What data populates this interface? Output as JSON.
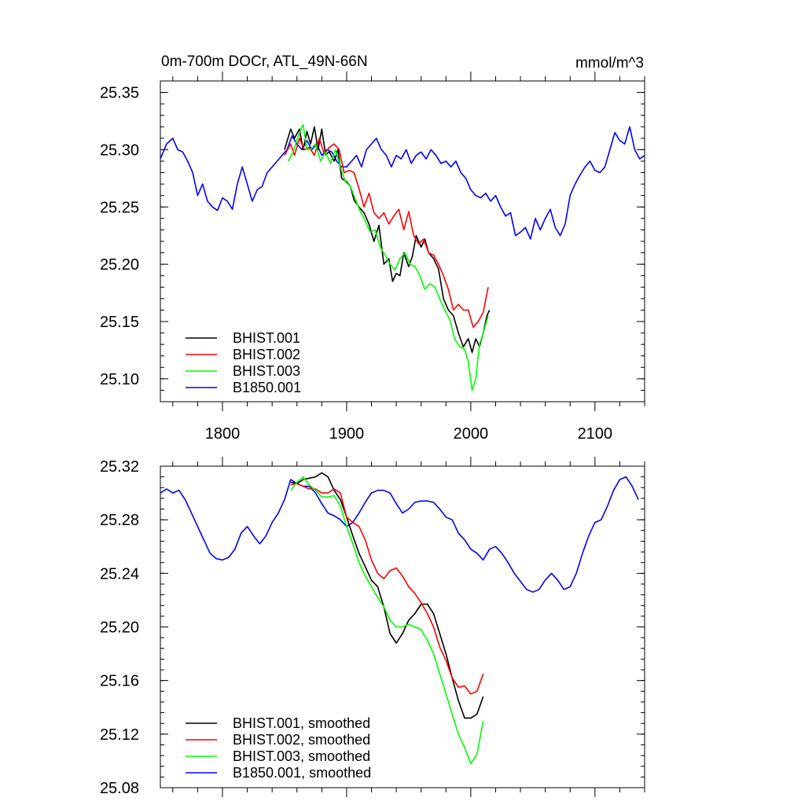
{
  "chart_data": [
    {
      "type": "line",
      "title": "0m-700m DOCr, ATL_49N-66N",
      "units": "mmol/m^3",
      "xlim": [
        1750,
        2140
      ],
      "ylim": [
        25.08,
        25.36
      ],
      "xticks": [
        1800,
        1900,
        2000,
        2100
      ],
      "xtick_labels": [
        "1800",
        "1900",
        "2000",
        "2100"
      ],
      "yticks": [
        25.1,
        25.15,
        25.2,
        25.25,
        25.3,
        25.35
      ],
      "ytick_labels": [
        "25.10",
        "25.15",
        "25.20",
        "25.25",
        "25.30",
        "25.35"
      ],
      "legend_position": "bottom-left",
      "series": [
        {
          "name": "BHIST.001",
          "color": "#000000",
          "x": [
            1850,
            1855,
            1858,
            1862,
            1865,
            1868,
            1871,
            1874,
            1877,
            1880,
            1883,
            1886,
            1890,
            1893,
            1896,
            1900,
            1903,
            1906,
            1910,
            1914,
            1918,
            1922,
            1926,
            1930,
            1934,
            1937,
            1940,
            1943,
            1946,
            1950,
            1953,
            1956,
            1960,
            1963,
            1966,
            1970,
            1974,
            1978,
            1982,
            1986,
            1990,
            1994,
            1998,
            2001,
            2004,
            2007,
            2010,
            2013,
            2015
          ],
          "y": [
            25.3,
            25.318,
            25.31,
            25.318,
            25.3,
            25.316,
            25.305,
            25.32,
            25.3,
            25.318,
            25.296,
            25.298,
            25.29,
            25.3,
            25.275,
            25.272,
            25.268,
            25.256,
            25.25,
            25.245,
            25.235,
            25.22,
            25.234,
            25.2,
            25.205,
            25.185,
            25.192,
            25.19,
            25.21,
            25.198,
            25.207,
            25.225,
            25.215,
            25.222,
            25.21,
            25.205,
            25.196,
            25.17,
            25.16,
            25.155,
            25.14,
            25.128,
            25.135,
            25.123,
            25.135,
            25.128,
            25.14,
            25.155,
            25.16
          ]
        },
        {
          "name": "BHIST.002",
          "color": "#ff0000",
          "x": [
            1850,
            1855,
            1858,
            1862,
            1866,
            1870,
            1874,
            1878,
            1882,
            1886,
            1890,
            1894,
            1898,
            1902,
            1906,
            1910,
            1914,
            1918,
            1922,
            1926,
            1930,
            1934,
            1938,
            1942,
            1946,
            1950,
            1954,
            1958,
            1962,
            1966,
            1970,
            1974,
            1978,
            1982,
            1986,
            1990,
            1994,
            1998,
            2002,
            2006,
            2010,
            2014
          ],
          "y": [
            25.295,
            25.305,
            25.295,
            25.31,
            25.3,
            25.302,
            25.295,
            25.31,
            25.296,
            25.302,
            25.305,
            25.3,
            25.28,
            25.282,
            25.28,
            25.266,
            25.25,
            25.262,
            25.245,
            25.24,
            25.245,
            25.235,
            25.242,
            25.248,
            25.23,
            25.246,
            25.225,
            25.218,
            25.222,
            25.21,
            25.208,
            25.2,
            25.19,
            25.178,
            25.16,
            25.165,
            25.16,
            25.16,
            25.145,
            25.15,
            25.158,
            25.18
          ]
        },
        {
          "name": "BHIST.003",
          "color": "#00ff00",
          "x": [
            1853,
            1857,
            1861,
            1865,
            1868,
            1871,
            1875,
            1879,
            1883,
            1887,
            1891,
            1895,
            1899,
            1903,
            1907,
            1911,
            1915,
            1919,
            1923,
            1927,
            1931,
            1935,
            1939,
            1943,
            1947,
            1951,
            1955,
            1959,
            1963,
            1967,
            1971,
            1975,
            1979,
            1983,
            1987,
            1991,
            1995,
            1998,
            2001,
            2004,
            2007,
            2010,
            2014
          ],
          "y": [
            25.29,
            25.298,
            25.312,
            25.322,
            25.3,
            25.3,
            25.305,
            25.29,
            25.298,
            25.288,
            25.3,
            25.285,
            25.272,
            25.268,
            25.257,
            25.246,
            25.238,
            25.228,
            25.23,
            25.215,
            25.208,
            25.2,
            25.195,
            25.205,
            25.21,
            25.2,
            25.198,
            25.19,
            25.178,
            25.183,
            25.18,
            25.17,
            25.16,
            25.152,
            25.135,
            25.128,
            25.126,
            25.115,
            25.09,
            25.1,
            25.13,
            25.14,
            25.155
          ]
        },
        {
          "name": "B1850.001",
          "color": "#0000ff",
          "x": [
            1750,
            1755,
            1760,
            1764,
            1768,
            1772,
            1776,
            1780,
            1784,
            1788,
            1792,
            1796,
            1800,
            1804,
            1808,
            1812,
            1816,
            1820,
            1824,
            1828,
            1832,
            1836,
            1840,
            1844,
            1848,
            1852,
            1856,
            1860,
            1864,
            1868,
            1872,
            1876,
            1880,
            1884,
            1888,
            1892,
            1896,
            1900,
            1904,
            1908,
            1912,
            1916,
            1920,
            1924,
            1928,
            1932,
            1936,
            1940,
            1944,
            1948,
            1952,
            1956,
            1960,
            1964,
            1968,
            1972,
            1976,
            1980,
            1984,
            1988,
            1992,
            1996,
            2000,
            2004,
            2008,
            2012,
            2016,
            2020,
            2024,
            2028,
            2032,
            2036,
            2040,
            2044,
            2048,
            2052,
            2056,
            2060,
            2064,
            2068,
            2072,
            2076,
            2080,
            2084,
            2088,
            2092,
            2096,
            2100,
            2104,
            2108,
            2112,
            2116,
            2120,
            2124,
            2128,
            2132,
            2136,
            2140
          ],
          "y": [
            25.292,
            25.305,
            25.31,
            25.3,
            25.298,
            25.29,
            25.28,
            25.26,
            25.27,
            25.255,
            25.25,
            25.247,
            25.258,
            25.255,
            25.248,
            25.27,
            25.285,
            25.27,
            25.255,
            25.265,
            25.268,
            25.28,
            25.285,
            25.29,
            25.295,
            25.3,
            25.312,
            25.305,
            25.3,
            25.308,
            25.3,
            25.305,
            25.295,
            25.3,
            25.298,
            25.29,
            25.285,
            25.285,
            25.29,
            25.295,
            25.285,
            25.3,
            25.305,
            25.31,
            25.3,
            25.295,
            25.285,
            25.295,
            25.292,
            25.3,
            25.288,
            25.295,
            25.298,
            25.292,
            25.3,
            25.295,
            25.288,
            25.29,
            25.285,
            25.29,
            25.28,
            25.275,
            25.265,
            25.26,
            25.258,
            25.262,
            25.255,
            25.26,
            25.25,
            25.242,
            25.245,
            25.225,
            25.228,
            25.232,
            25.222,
            25.24,
            25.23,
            25.24,
            25.248,
            25.232,
            25.225,
            25.235,
            25.26,
            25.27,
            25.278,
            25.285,
            25.29,
            25.282,
            25.28,
            25.285,
            25.3,
            25.315,
            25.308,
            25.305,
            25.32,
            25.3,
            25.292,
            25.295
          ]
        }
      ]
    },
    {
      "type": "line",
      "title": "",
      "xlim": [
        1750,
        2140
      ],
      "ylim": [
        25.08,
        25.32
      ],
      "xticks": [
        1800,
        1900,
        2000,
        2100
      ],
      "xtick_labels": [],
      "yticks": [
        25.08,
        25.12,
        25.16,
        25.2,
        25.24,
        25.28,
        25.32
      ],
      "ytick_labels": [
        "25.08",
        "25.12",
        "25.16",
        "25.20",
        "25.24",
        "25.28",
        "25.32"
      ],
      "legend_position": "bottom-left",
      "series": [
        {
          "name": "BHIST.001, smoothed",
          "color": "#000000",
          "x": [
            1855,
            1860,
            1865,
            1870,
            1875,
            1880,
            1885,
            1890,
            1895,
            1900,
            1905,
            1910,
            1915,
            1920,
            1925,
            1930,
            1935,
            1940,
            1945,
            1950,
            1955,
            1960,
            1965,
            1970,
            1975,
            1980,
            1985,
            1990,
            1995,
            2000,
            2005,
            2010
          ],
          "y": [
            25.308,
            25.307,
            25.31,
            25.311,
            25.312,
            25.315,
            25.312,
            25.302,
            25.295,
            25.282,
            25.268,
            25.255,
            25.245,
            25.235,
            25.23,
            25.215,
            25.195,
            25.188,
            25.195,
            25.205,
            25.21,
            25.217,
            25.217,
            25.21,
            25.195,
            25.18,
            25.162,
            25.145,
            25.132,
            25.132,
            25.135,
            25.148
          ]
        },
        {
          "name": "BHIST.002, smoothed",
          "color": "#ff0000",
          "x": [
            1855,
            1860,
            1865,
            1870,
            1875,
            1880,
            1885,
            1890,
            1895,
            1900,
            1905,
            1910,
            1915,
            1920,
            1925,
            1930,
            1935,
            1940,
            1945,
            1950,
            1955,
            1960,
            1965,
            1970,
            1975,
            1980,
            1985,
            1990,
            1995,
            2000,
            2005,
            2010
          ],
          "y": [
            25.306,
            25.307,
            25.305,
            25.303,
            25.303,
            25.3,
            25.3,
            25.303,
            25.3,
            25.282,
            25.278,
            25.275,
            25.265,
            25.25,
            25.24,
            25.236,
            25.242,
            25.244,
            25.238,
            25.23,
            25.225,
            25.218,
            25.21,
            25.2,
            25.185,
            25.175,
            25.162,
            25.155,
            25.156,
            25.15,
            25.152,
            25.165
          ]
        },
        {
          "name": "BHIST.003, smoothed",
          "color": "#00ff00",
          "x": [
            1855,
            1860,
            1865,
            1870,
            1875,
            1880,
            1885,
            1890,
            1895,
            1900,
            1905,
            1910,
            1915,
            1920,
            1925,
            1930,
            1935,
            1940,
            1945,
            1950,
            1955,
            1960,
            1965,
            1970,
            1975,
            1980,
            1985,
            1990,
            1995,
            2000,
            2005,
            2010
          ],
          "y": [
            25.302,
            25.308,
            25.312,
            25.306,
            25.302,
            25.297,
            25.297,
            25.298,
            25.29,
            25.275,
            25.262,
            25.248,
            25.238,
            25.23,
            25.222,
            25.215,
            25.205,
            25.2,
            25.2,
            25.202,
            25.2,
            25.198,
            25.19,
            25.18,
            25.165,
            25.15,
            25.135,
            25.12,
            25.11,
            25.098,
            25.105,
            25.13
          ]
        },
        {
          "name": "B1850.001, smoothed",
          "color": "#0000ff",
          "x": [
            1750,
            1755,
            1760,
            1765,
            1770,
            1775,
            1780,
            1785,
            1790,
            1795,
            1800,
            1805,
            1810,
            1815,
            1820,
            1825,
            1830,
            1835,
            1840,
            1845,
            1850,
            1855,
            1860,
            1865,
            1870,
            1875,
            1880,
            1885,
            1890,
            1895,
            1900,
            1905,
            1910,
            1915,
            1920,
            1925,
            1930,
            1935,
            1940,
            1945,
            1950,
            1955,
            1960,
            1965,
            1970,
            1975,
            1980,
            1985,
            1990,
            1995,
            2000,
            2005,
            2010,
            2015,
            2020,
            2025,
            2030,
            2035,
            2040,
            2045,
            2050,
            2055,
            2060,
            2065,
            2070,
            2075,
            2080,
            2085,
            2090,
            2095,
            2100,
            2105,
            2110,
            2115,
            2120,
            2125,
            2130,
            2135
          ],
          "y": [
            25.3,
            25.303,
            25.3,
            25.302,
            25.295,
            25.285,
            25.275,
            25.265,
            25.255,
            25.251,
            25.25,
            25.252,
            25.258,
            25.27,
            25.275,
            25.268,
            25.262,
            25.268,
            25.278,
            25.285,
            25.295,
            25.31,
            25.307,
            25.305,
            25.305,
            25.3,
            25.292,
            25.285,
            25.283,
            25.28,
            25.275,
            25.278,
            25.285,
            25.293,
            25.3,
            25.302,
            25.302,
            25.3,
            25.292,
            25.285,
            25.288,
            25.293,
            25.294,
            25.294,
            25.293,
            25.288,
            25.282,
            25.28,
            25.27,
            25.265,
            25.258,
            25.255,
            25.25,
            25.258,
            25.26,
            25.255,
            25.248,
            25.24,
            25.234,
            25.228,
            25.226,
            25.228,
            25.235,
            25.24,
            25.235,
            25.228,
            25.23,
            25.24,
            25.255,
            25.268,
            25.278,
            25.28,
            25.29,
            25.302,
            25.31,
            25.312,
            25.305,
            25.295
          ]
        }
      ]
    }
  ]
}
